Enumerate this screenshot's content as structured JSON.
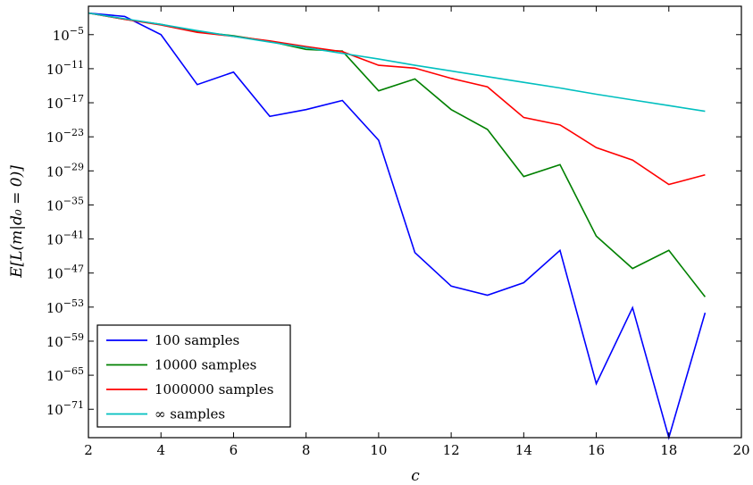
{
  "chart_data": {
    "type": "line",
    "title": "",
    "xlabel": "c",
    "ylabel": "E[L(m|d₀ = 0)]",
    "xlim": [
      2,
      20
    ],
    "ylim_log10": [
      -76,
      0
    ],
    "y_scale": "log",
    "grid": false,
    "legend_position": "lower-left",
    "x_ticks": [
      2,
      4,
      6,
      8,
      10,
      12,
      14,
      16,
      18,
      20
    ],
    "y_ticks": [
      {
        "exp": -5,
        "base": "10",
        "sup": "−5"
      },
      {
        "exp": -11,
        "base": "10",
        "sup": "−11"
      },
      {
        "exp": -17,
        "base": "10",
        "sup": "−17"
      },
      {
        "exp": -23,
        "base": "10",
        "sup": "−23"
      },
      {
        "exp": -29,
        "base": "10",
        "sup": "−29"
      },
      {
        "exp": -35,
        "base": "10",
        "sup": "−35"
      },
      {
        "exp": -41,
        "base": "10",
        "sup": "−41"
      },
      {
        "exp": -47,
        "base": "10",
        "sup": "−47"
      },
      {
        "exp": -53,
        "base": "10",
        "sup": "−53"
      },
      {
        "exp": -59,
        "base": "10",
        "sup": "−59"
      },
      {
        "exp": -65,
        "base": "10",
        "sup": "−65"
      },
      {
        "exp": -71,
        "base": "10",
        "sup": "−71"
      }
    ],
    "x": [
      2,
      3,
      4,
      5,
      6,
      7,
      8,
      9,
      10,
      11,
      12,
      13,
      14,
      15,
      16,
      17,
      18,
      19
    ],
    "series": [
      {
        "name": "100 samples",
        "color": "#0000ff",
        "log10_values": [
          -1.2,
          -1.8,
          -5.0,
          -13.8,
          -11.6,
          -19.4,
          -18.2,
          -16.6,
          -23.6,
          -43.4,
          -49.3,
          -50.9,
          -48.7,
          -43.0,
          -66.5,
          -53.1,
          -76.0,
          -54.0
        ]
      },
      {
        "name": "10000 samples",
        "color": "#008000",
        "log10_values": [
          -1.2,
          -2.3,
          -3.2,
          -4.5,
          -5.2,
          -6.2,
          -7.6,
          -7.9,
          -14.9,
          -12.8,
          -18.2,
          -21.7,
          -30.0,
          -27.9,
          -40.5,
          -46.2,
          -43.0,
          -51.2
        ]
      },
      {
        "name": "1000000 samples",
        "color": "#ff0000",
        "log10_values": [
          -1.2,
          -2.3,
          -3.3,
          -4.6,
          -5.3,
          -6.1,
          -7.1,
          -8.0,
          -10.4,
          -10.9,
          -12.7,
          -14.2,
          -19.6,
          -20.9,
          -24.9,
          -27.1,
          -31.4,
          -29.7
        ]
      },
      {
        "name": "∞ samples",
        "color": "#00bfbf",
        "log10_values": [
          -1.2,
          -2.2,
          -3.2,
          -4.3,
          -5.3,
          -6.3,
          -7.3,
          -8.3,
          -9.3,
          -10.4,
          -11.4,
          -12.4,
          -13.4,
          -14.4,
          -15.5,
          -16.5,
          -17.5,
          -18.5
        ]
      }
    ]
  }
}
